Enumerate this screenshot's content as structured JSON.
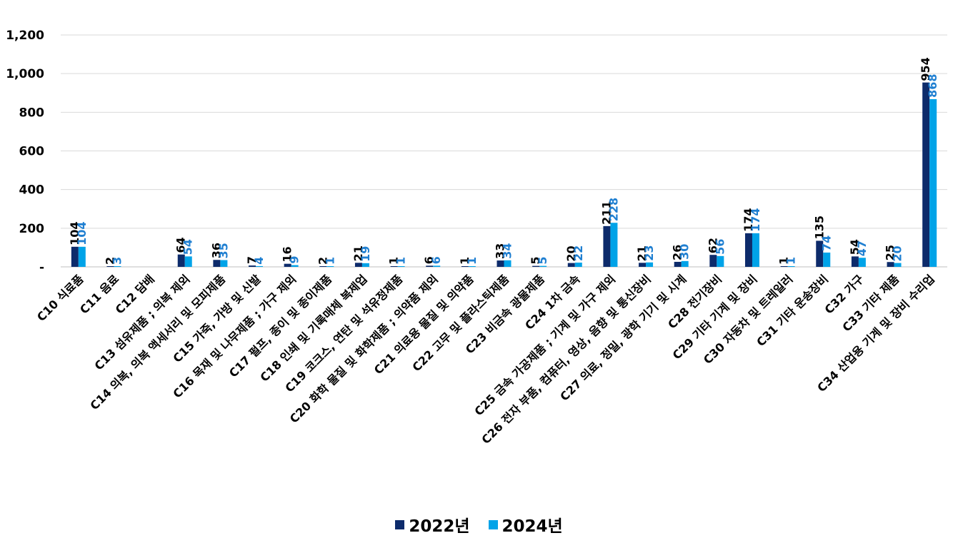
{
  "chart_data": {
    "type": "bar",
    "title": "",
    "xlabel": "",
    "ylabel": "",
    "ylim": [
      0,
      1200
    ],
    "yticks": [
      0,
      200,
      400,
      600,
      800,
      1000,
      1200
    ],
    "ytick_labels": [
      "-",
      "200",
      "400",
      "600",
      "800",
      "1,000",
      "1,200"
    ],
    "grid": true,
    "legend_position": "bottom",
    "categories": [
      "C10 식료품",
      "C11 음료",
      "C12 담배",
      "C13 섬유제품 ; 의복 제외",
      "C14 의복, 의복 액세서리 및 모피제품",
      "C15 가죽, 가방 및 신발",
      "C16 목재 및 나무제품 ; 가구 제외",
      "C17 펄프, 종이 및 종이제품",
      "C18 인쇄 및 기록매체 복제업",
      "C19 코크스, 연탄 및 석유정제품",
      "C20 화학 물질 및 화학제품 ; 의약품 제외",
      "C21 의료용 물질 및 의약품",
      "C22 고무 및 플라스틱제품",
      "C23 비금속 광물제품",
      "C24 1차 금속",
      "C25 금속 가공제품 ; 기계 및 가구 제외",
      "C26 전자 부품, 컴퓨터, 영상, 음향 및 통신장비",
      "C27 의료, 정밀, 광학 기기 및 시계",
      "C28 전기장비",
      "C29 기타 기계 및 장비",
      "C30 자동차 및 트레일러",
      "C31 기타 운송장비",
      "C32 가구",
      "C33 기타 제품",
      "C34 산업용 기계 및 장비 수리업"
    ],
    "series": [
      {
        "name": "2022년",
        "color": "#0d2b6b",
        "values": [
          104,
          2,
          null,
          64,
          36,
          7,
          16,
          2,
          21,
          1,
          6,
          1,
          33,
          5,
          20,
          211,
          21,
          26,
          62,
          174,
          1,
          135,
          54,
          25,
          954
        ],
        "labels": [
          "104",
          "2",
          "",
          "64",
          "36",
          "7",
          "16",
          "2",
          "21",
          "1",
          "6",
          "1",
          "33",
          "5",
          "20",
          "211",
          "21",
          "26",
          "62",
          "174",
          "1",
          "135",
          "54",
          "25",
          "954"
        ]
      },
      {
        "name": "2024년",
        "color": "#00a3e8",
        "values": [
          104,
          3,
          null,
          54,
          35,
          4,
          9,
          1,
          19,
          1,
          6,
          1,
          34,
          5,
          22,
          228,
          23,
          30,
          56,
          174,
          1,
          74,
          47,
          20,
          868
        ],
        "labels": [
          "104",
          "3",
          "",
          "54",
          "35",
          "4",
          "9",
          "1",
          "19",
          "1",
          "6",
          "1",
          "34",
          "5",
          "22",
          "228",
          "23",
          "30",
          "56",
          "174",
          "1",
          "74",
          "47",
          "20",
          "868"
        ]
      }
    ]
  },
  "legend": {
    "series1_label": "2022년",
    "series2_label": "2024년"
  }
}
